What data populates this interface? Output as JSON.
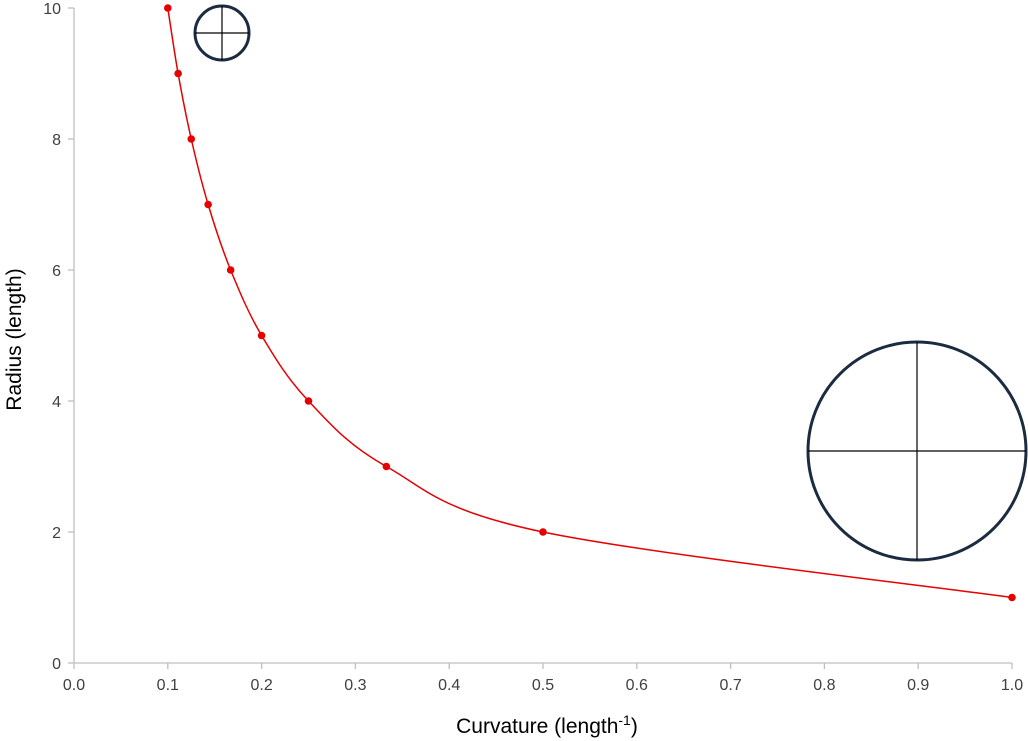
{
  "chart_data": {
    "type": "scatter",
    "xlabel": "Curvature (length",
    "xlabel_superscript": "-1",
    "xlabel_suffix": ")",
    "ylabel": "Radius (length)",
    "xlim": [
      0.0,
      1.0
    ],
    "ylim": [
      0,
      10
    ],
    "x_ticks": [
      0.0,
      0.1,
      0.2,
      0.3,
      0.4,
      0.5,
      0.6,
      0.7,
      0.8,
      0.9,
      1.0
    ],
    "x_tick_labels": [
      "0.0",
      "0.1",
      "0.2",
      "0.3",
      "0.4",
      "0.5",
      "0.6",
      "0.7",
      "0.8",
      "0.9",
      "1.0"
    ],
    "y_ticks": [
      0,
      2,
      4,
      6,
      8,
      10
    ],
    "y_tick_labels": [
      "0",
      "2",
      "4",
      "6",
      "8",
      "10"
    ],
    "grid": false,
    "legend": "none",
    "series": [
      {
        "color": "#e60000",
        "line": "smooth",
        "marker": "circle",
        "points": [
          {
            "x": 0.1,
            "y": 10
          },
          {
            "x": 0.111,
            "y": 9
          },
          {
            "x": 0.125,
            "y": 8
          },
          {
            "x": 0.143,
            "y": 7
          },
          {
            "x": 0.167,
            "y": 6
          },
          {
            "x": 0.2,
            "y": 5
          },
          {
            "x": 0.25,
            "y": 4
          },
          {
            "x": 0.333,
            "y": 3
          },
          {
            "x": 0.5,
            "y": 2
          },
          {
            "x": 1.0,
            "y": 1
          }
        ]
      }
    ],
    "annotations": [
      {
        "icon": "small-circle-icon",
        "description_color": "#1b2b40",
        "radius_data_units": 10
      },
      {
        "icon": "large-circle-icon",
        "description_color": "#1b2b40",
        "radius_data_units": 1
      }
    ],
    "colors": {
      "series": "#e60000",
      "axis": "#bfbfbf",
      "tick_text": "#404040",
      "icon_stroke": "#1b2b40"
    }
  }
}
